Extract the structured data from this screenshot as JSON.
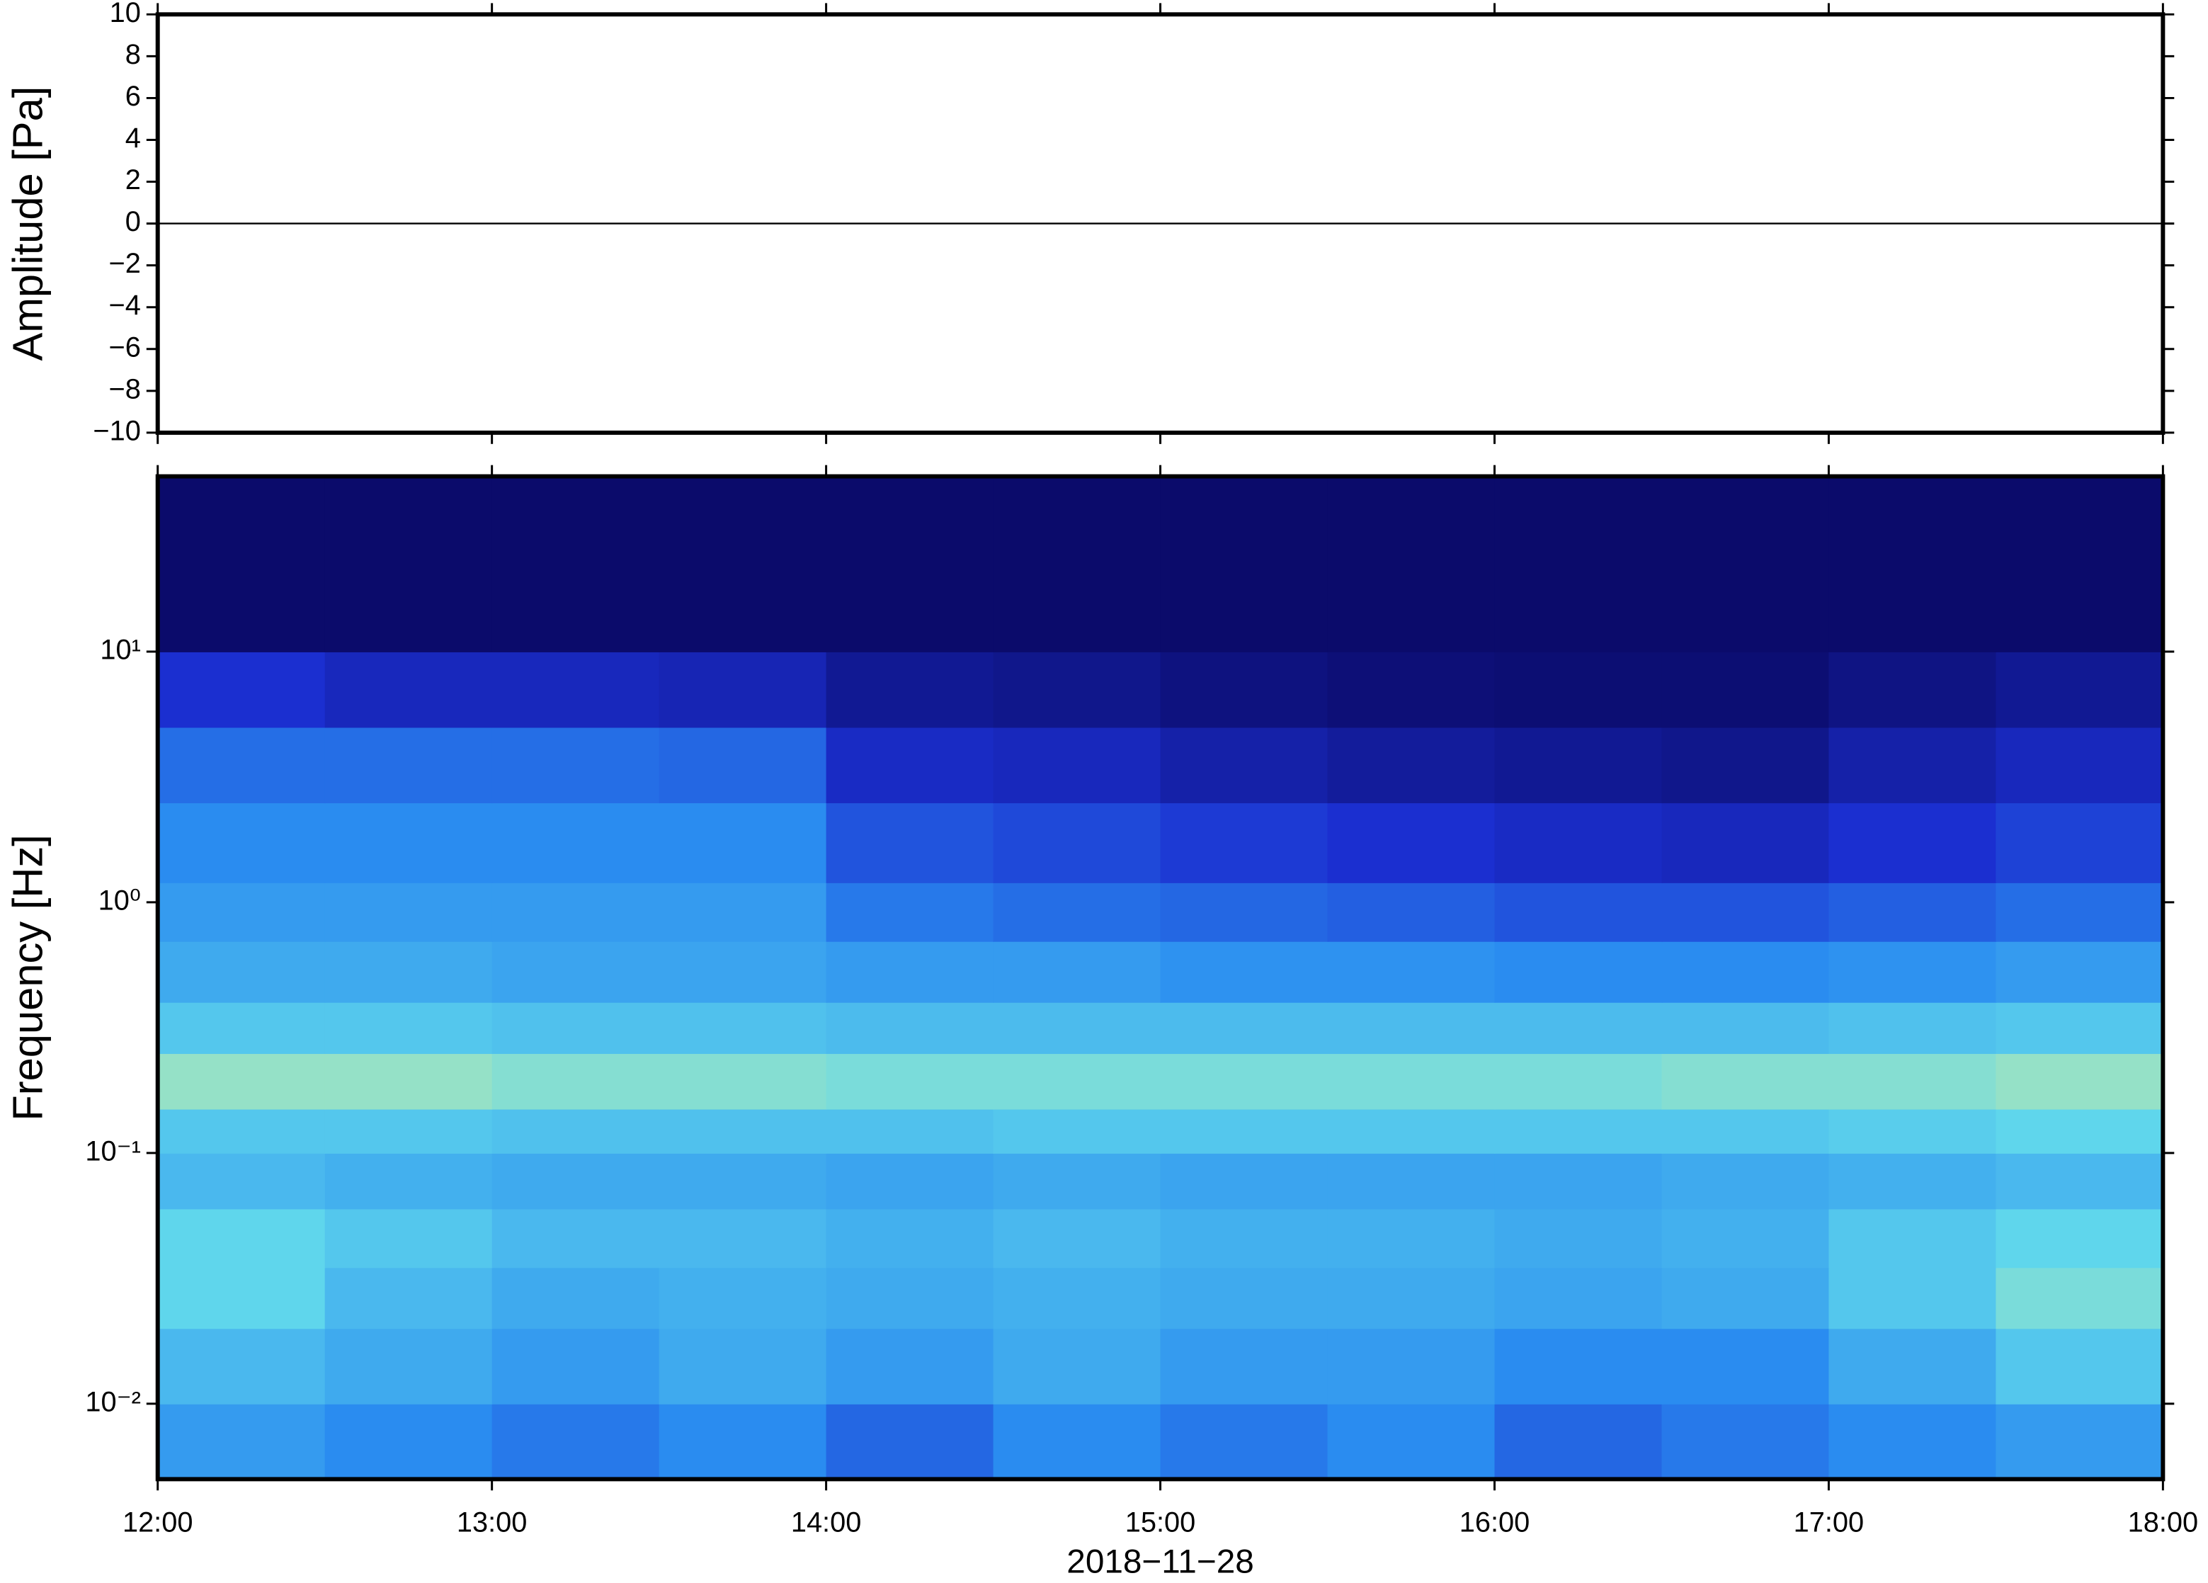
{
  "chart_data": [
    {
      "type": "line",
      "ylabel": "Amplitude [Pa]",
      "x": [
        12,
        18
      ],
      "values": [
        0,
        0
      ],
      "color": "#000000",
      "xlim": [
        12,
        18
      ],
      "xticks": [
        {
          "value": 12,
          "label": "12:00"
        },
        {
          "value": 13,
          "label": "13:00"
        },
        {
          "value": 14,
          "label": "14:00"
        },
        {
          "value": 15,
          "label": "15:00"
        },
        {
          "value": 16,
          "label": "16:00"
        },
        {
          "value": 17,
          "label": "17:00"
        },
        {
          "value": 18,
          "label": "18:00"
        }
      ],
      "ylim": [
        -10,
        10
      ],
      "yticks": [
        {
          "value": -10,
          "label": "−10"
        },
        {
          "value": -8,
          "label": "−8"
        },
        {
          "value": -6,
          "label": "−6"
        },
        {
          "value": -4,
          "label": "−4"
        },
        {
          "value": -2,
          "label": "−2"
        },
        0,
        2,
        4,
        6,
        8,
        10
      ]
    },
    {
      "type": "heatmap",
      "ylabel": "Frequency [Hz]",
      "xlabel": "2018−11−28",
      "log_y": true,
      "xlim": [
        12,
        18
      ],
      "xticks": [
        {
          "value": 12,
          "label": "12:00"
        },
        {
          "value": 13,
          "label": "13:00"
        },
        {
          "value": 14,
          "label": "14:00"
        },
        {
          "value": 15,
          "label": "15:00"
        },
        {
          "value": 16,
          "label": "16:00"
        },
        {
          "value": 17,
          "label": "17:00"
        },
        {
          "value": 18,
          "label": "18:00"
        }
      ],
      "ylim": [
        0.005,
        50
      ],
      "yticks": [
        {
          "value": 0.01,
          "label": "10⁻²"
        },
        {
          "value": 0.1,
          "label": "10⁻¹"
        },
        {
          "value": 1,
          "label": "10⁰"
        },
        {
          "value": 10,
          "label": "10¹"
        }
      ],
      "x_bins": [
        12,
        12.5,
        13,
        13.5,
        14,
        14.5,
        15,
        15.5,
        16,
        16.5,
        17,
        17.5,
        18
      ],
      "y_bins": [
        0.005,
        0.01,
        0.02,
        0.035,
        0.06,
        0.1,
        0.15,
        0.25,
        0.4,
        0.7,
        1.2,
        2.5,
        5,
        10,
        50
      ],
      "zlim": [
        0,
        1
      ],
      "colormap": [
        "#0b0b6b",
        "#1b2fd0",
        "#2a8cf0",
        "#5fd6ec",
        "#e6f290"
      ],
      "values": [
        [
          0.55,
          0.5,
          0.45,
          0.5,
          0.4,
          0.5,
          0.45,
          0.5,
          0.4,
          0.45,
          0.5,
          0.55
        ],
        [
          0.65,
          0.6,
          0.55,
          0.6,
          0.55,
          0.6,
          0.55,
          0.55,
          0.5,
          0.5,
          0.6,
          0.7
        ],
        [
          0.75,
          0.65,
          0.6,
          0.62,
          0.6,
          0.62,
          0.6,
          0.6,
          0.58,
          0.6,
          0.7,
          0.8
        ],
        [
          0.75,
          0.7,
          0.65,
          0.65,
          0.62,
          0.65,
          0.62,
          0.62,
          0.6,
          0.62,
          0.7,
          0.75
        ],
        [
          0.65,
          0.62,
          0.6,
          0.6,
          0.58,
          0.6,
          0.58,
          0.58,
          0.58,
          0.6,
          0.62,
          0.65
        ],
        [
          0.7,
          0.7,
          0.68,
          0.68,
          0.68,
          0.7,
          0.7,
          0.7,
          0.7,
          0.7,
          0.72,
          0.75
        ],
        [
          0.85,
          0.85,
          0.82,
          0.82,
          0.8,
          0.8,
          0.8,
          0.8,
          0.8,
          0.82,
          0.82,
          0.85
        ],
        [
          0.7,
          0.7,
          0.68,
          0.68,
          0.66,
          0.66,
          0.66,
          0.66,
          0.66,
          0.66,
          0.68,
          0.7
        ],
        [
          0.6,
          0.6,
          0.58,
          0.58,
          0.55,
          0.55,
          0.52,
          0.52,
          0.5,
          0.5,
          0.52,
          0.55
        ],
        [
          0.55,
          0.55,
          0.55,
          0.55,
          0.45,
          0.42,
          0.4,
          0.38,
          0.35,
          0.35,
          0.38,
          0.42
        ],
        [
          0.5,
          0.5,
          0.5,
          0.5,
          0.35,
          0.32,
          0.28,
          0.25,
          0.22,
          0.2,
          0.25,
          0.3
        ],
        [
          0.42,
          0.42,
          0.42,
          0.4,
          0.22,
          0.2,
          0.15,
          0.12,
          0.1,
          0.08,
          0.15,
          0.2
        ],
        [
          0.25,
          0.2,
          0.2,
          0.18,
          0.1,
          0.08,
          0.05,
          0.03,
          0.02,
          0.02,
          0.06,
          0.1
        ],
        [
          0,
          0,
          0,
          0,
          0,
          0,
          0,
          0,
          0,
          0,
          0,
          0
        ]
      ]
    }
  ]
}
